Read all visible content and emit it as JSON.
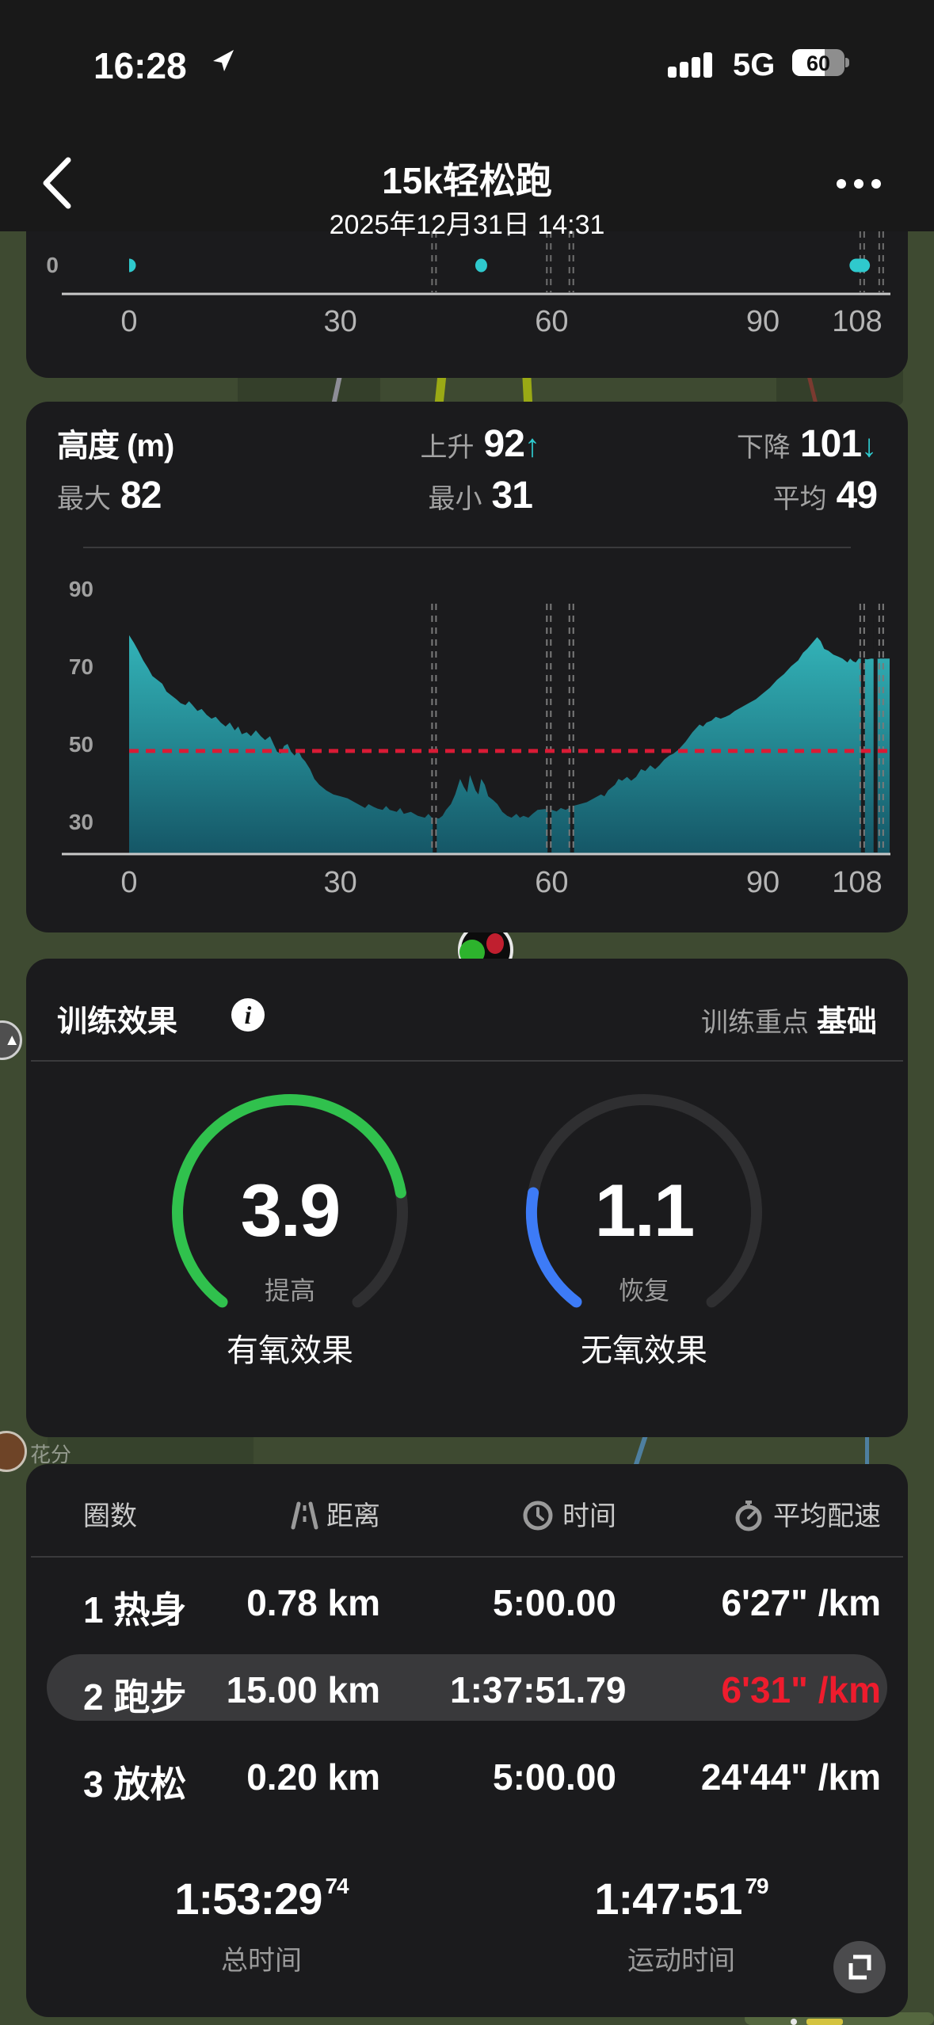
{
  "status_bar": {
    "time": "16:28",
    "network": "5G",
    "battery": "60"
  },
  "header": {
    "title": "15k轻松跑",
    "subtitle": "2025年12月31日 14:31"
  },
  "elevation": {
    "title": "高度 (m)",
    "ascent_label": "上升",
    "ascent": "92",
    "descent_label": "下降",
    "descent": "101",
    "max_label": "最大",
    "max": "82",
    "min_label": "最小",
    "min": "31",
    "avg_label": "平均",
    "avg": "49",
    "up_arrow": "↑",
    "down_arrow": "↓"
  },
  "training": {
    "title": "训练效果",
    "focus_label": "训练重点",
    "focus_value": "基础",
    "gauges": [
      {
        "value": "3.9",
        "num": 3.9,
        "max": 5,
        "color": "#30c14d",
        "sub": "提高",
        "label": "有氧效果"
      },
      {
        "value": "1.1",
        "num": 1.1,
        "max": 5,
        "color": "#3d7bf7",
        "sub": "恢复",
        "label": "无氧效果"
      }
    ]
  },
  "laps": {
    "headers": {
      "lap": "圈数",
      "distance": "距离",
      "time": "时间",
      "pace": "平均配速"
    },
    "rows": [
      {
        "name": "1 热身",
        "distance": "0.78 km",
        "time": "5:00.00",
        "pace": "6'27\" /km"
      },
      {
        "name": "2 跑步",
        "distance": "15.00 km",
        "time": "1:37:51.79",
        "pace": "6'31\" /km",
        "highlight": true
      },
      {
        "name": "3 放松",
        "distance": "0.20 km",
        "time": "5:00.00",
        "pace": "24'44\" /km"
      }
    ],
    "totals": [
      {
        "value": "1:53:29",
        "frac": "74",
        "label": "总时间"
      },
      {
        "value": "1:47:51",
        "frac": "79",
        "label": "运动时间"
      }
    ]
  },
  "map": {
    "poi_label": "花分"
  },
  "colors": {
    "teal": "#2fc9cd",
    "red_line": "#d91b35",
    "red_pace": "#ee1c2d",
    "card_bg": "#1b1b1d",
    "map_green": "#3e4a31",
    "gauge_green": "#30c14d",
    "gauge_blue": "#3d7bf7",
    "gauge_track": "#2f2f31"
  },
  "chart_data": [
    {
      "type": "scatter",
      "name": "lap-strip-chart",
      "x_ticks": [
        0,
        30,
        60,
        90,
        108
      ],
      "xlim": [
        0,
        108
      ],
      "y_label": "0",
      "points": [
        {
          "x": 0,
          "y": 0,
          "shape": "half"
        },
        {
          "x": 50,
          "y": 0,
          "shape": "dot"
        },
        {
          "xStart": 102.3,
          "xEnd": 105.2,
          "y": 0,
          "shape": "bar"
        }
      ],
      "markers": [
        43.3,
        59.6,
        62.8,
        104.1,
        106.8
      ]
    },
    {
      "type": "area",
      "name": "elevation-profile",
      "title": "高度 (m)",
      "xlabel": "",
      "ylabel": "",
      "x_ticks": [
        0,
        30,
        60,
        90,
        108
      ],
      "y_ticks": [
        30,
        50,
        70,
        90
      ],
      "xlim": [
        0,
        108
      ],
      "ylim_drawn": [
        21,
        92
      ],
      "avg": 49,
      "max": 82,
      "min": 31,
      "ascent": 92,
      "descent": 101,
      "markers": [
        43.3,
        59.6,
        62.8,
        104.1,
        106.8
      ],
      "gaps": [
        43.4,
        59.7,
        62.9,
        104.2,
        106.0
      ],
      "points": [
        [
          0,
          78
        ],
        [
          0.7,
          76
        ],
        [
          1.3,
          74
        ],
        [
          2,
          71.5
        ],
        [
          2.7,
          69.5
        ],
        [
          3.3,
          67.5
        ],
        [
          4,
          66.5
        ],
        [
          4.7,
          65.5
        ],
        [
          5.3,
          63.5
        ],
        [
          6,
          62.5
        ],
        [
          6.7,
          61.5
        ],
        [
          7.3,
          60.5
        ],
        [
          8,
          60
        ],
        [
          8.5,
          61
        ],
        [
          9,
          60
        ],
        [
          9.7,
          58.5
        ],
        [
          10.3,
          59
        ],
        [
          11,
          57.5
        ],
        [
          11.7,
          56.5
        ],
        [
          12.3,
          57
        ],
        [
          13,
          55.5
        ],
        [
          13.7,
          54.5
        ],
        [
          14.3,
          55.5
        ],
        [
          15,
          53.5
        ],
        [
          15.5,
          54.5
        ],
        [
          16,
          52.5
        ],
        [
          16.7,
          53
        ],
        [
          17.3,
          52
        ],
        [
          18,
          53.5
        ],
        [
          18.7,
          52
        ],
        [
          19.3,
          51
        ],
        [
          20,
          52
        ],
        [
          20.5,
          50
        ],
        [
          21,
          48
        ],
        [
          21.5,
          47.5
        ],
        [
          22,
          49.5
        ],
        [
          22.5,
          50
        ],
        [
          23,
          48
        ],
        [
          23.5,
          47
        ],
        [
          24,
          48.5
        ],
        [
          24.5,
          46.5
        ],
        [
          25,
          45.5
        ],
        [
          25.7,
          43.5
        ],
        [
          26.3,
          41
        ],
        [
          27,
          39.5
        ],
        [
          28,
          38
        ],
        [
          29,
          37
        ],
        [
          30,
          36.5
        ],
        [
          31,
          36
        ],
        [
          32,
          35
        ],
        [
          33,
          34
        ],
        [
          33.5,
          33.5
        ],
        [
          34,
          34.5
        ],
        [
          34.7,
          33.8
        ],
        [
          35.3,
          33.3
        ],
        [
          36,
          33
        ],
        [
          36.5,
          34
        ],
        [
          37,
          33
        ],
        [
          38,
          32.5
        ],
        [
          38.5,
          33.5
        ],
        [
          39,
          32
        ],
        [
          40,
          32.5
        ],
        [
          41,
          31.5
        ],
        [
          42,
          31
        ],
        [
          42.5,
          32
        ],
        [
          43,
          31
        ],
        [
          44,
          30.8
        ],
        [
          44.5,
          31.5
        ],
        [
          45,
          33
        ],
        [
          45.7,
          34.5
        ],
        [
          46.3,
          37
        ],
        [
          47,
          41
        ],
        [
          47.5,
          39
        ],
        [
          48,
          37.5
        ],
        [
          48.4,
          42
        ],
        [
          48.8,
          40
        ],
        [
          49.2,
          38
        ],
        [
          49.6,
          37
        ],
        [
          50,
          41
        ],
        [
          50.5,
          39.5
        ],
        [
          51,
          36.5
        ],
        [
          51.7,
          35.5
        ],
        [
          52.3,
          34.5
        ],
        [
          53,
          32.5
        ],
        [
          53.7,
          31.5
        ],
        [
          54.3,
          31
        ],
        [
          55,
          32
        ],
        [
          55.5,
          31
        ],
        [
          56,
          31.5
        ],
        [
          56.7,
          31
        ],
        [
          57.3,
          32
        ],
        [
          58,
          33
        ],
        [
          59,
          33.2
        ],
        [
          60,
          33
        ],
        [
          60.7,
          32.6
        ],
        [
          61.3,
          33.5
        ],
        [
          62,
          33
        ],
        [
          63,
          34
        ],
        [
          64,
          34.5
        ],
        [
          65,
          35
        ],
        [
          66,
          36
        ],
        [
          67,
          37
        ],
        [
          67.5,
          36.5
        ],
        [
          68,
          38
        ],
        [
          69,
          39.5
        ],
        [
          69.5,
          41
        ],
        [
          70,
          40.5
        ],
        [
          70.7,
          41.5
        ],
        [
          71.3,
          40.5
        ],
        [
          72,
          41.5
        ],
        [
          72.7,
          43.5
        ],
        [
          73.3,
          43
        ],
        [
          74,
          44.5
        ],
        [
          74.7,
          43.5
        ],
        [
          75.3,
          44.5
        ],
        [
          76,
          46
        ],
        [
          76.7,
          47
        ],
        [
          77.3,
          47.5
        ],
        [
          78,
          48.5
        ],
        [
          79,
          50.5
        ],
        [
          80,
          53
        ],
        [
          81,
          55
        ],
        [
          81.5,
          54.5
        ],
        [
          82,
          55.5
        ],
        [
          82.7,
          56
        ],
        [
          83.3,
          57
        ],
        [
          84,
          56.5
        ],
        [
          84.7,
          57
        ],
        [
          85.3,
          57.5
        ],
        [
          86,
          58.5
        ],
        [
          87,
          59.5
        ],
        [
          88,
          60.5
        ],
        [
          89,
          61.5
        ],
        [
          90,
          63
        ],
        [
          91,
          64.5
        ],
        [
          92,
          66.5
        ],
        [
          93,
          68
        ],
        [
          94,
          70
        ],
        [
          95,
          71.5
        ],
        [
          95.7,
          73.5
        ],
        [
          96.3,
          74.5
        ],
        [
          97,
          76
        ],
        [
          97.7,
          77.5
        ],
        [
          98.2,
          76.5
        ],
        [
          98.7,
          74.5
        ],
        [
          99.3,
          74
        ],
        [
          100,
          73
        ],
        [
          100.7,
          72.5
        ],
        [
          101.3,
          72
        ],
        [
          102,
          71
        ],
        [
          102.4,
          72
        ],
        [
          102.8,
          71.3
        ],
        [
          103.2,
          71
        ],
        [
          103.6,
          72
        ],
        [
          104.2,
          72
        ],
        [
          104.8,
          71.8
        ],
        [
          105.4,
          72
        ],
        [
          106,
          71.9
        ],
        [
          106.6,
          72
        ],
        [
          107.3,
          72
        ],
        [
          108,
          72
        ]
      ]
    }
  ]
}
